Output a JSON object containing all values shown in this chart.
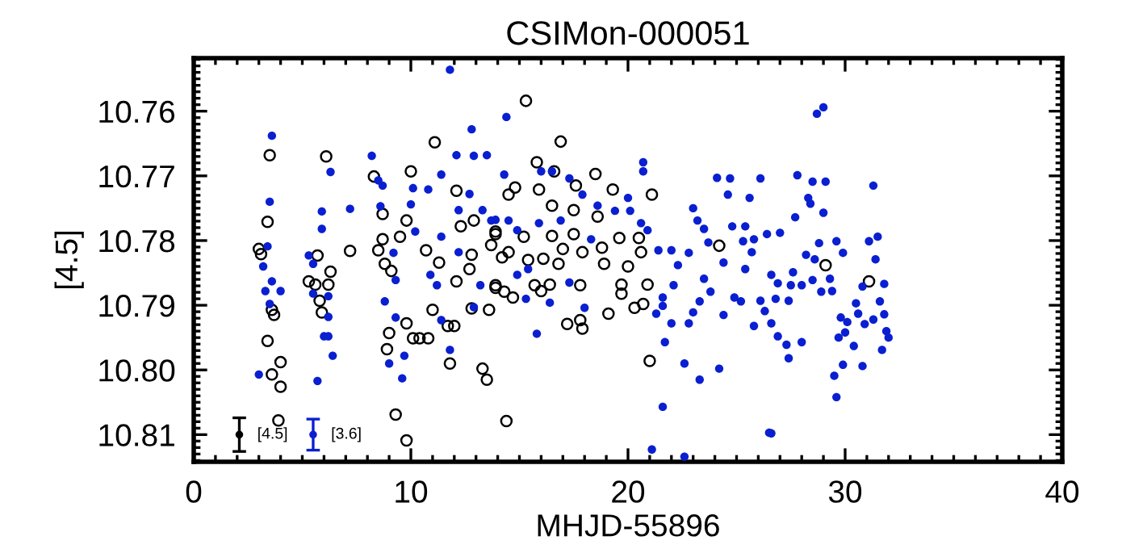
{
  "chart_data": {
    "type": "scatter",
    "title": "CSIMon-000051",
    "xlabel": "MHJD-55896",
    "ylabel": "[4.5]",
    "xlim": [
      0,
      40
    ],
    "xticks": [
      0,
      10,
      20,
      30,
      40
    ],
    "ylim": [
      10.8142,
      10.7518
    ],
    "yticks": [
      {
        "value": 10.76,
        "label": "10.76"
      },
      {
        "value": 10.77,
        "label": "10.77"
      },
      {
        "value": 10.78,
        "label": "10.78"
      },
      {
        "value": 10.79,
        "label": "10.79"
      },
      {
        "value": 10.8,
        "label": "10.80"
      },
      {
        "value": 10.81,
        "label": "10.81"
      }
    ],
    "grid": false,
    "legend": false,
    "series": [
      {
        "color": "#000000",
        "marker": "circle",
        "x": [
          3.5,
          3.4,
          3.0,
          3.1,
          3.6,
          3.7,
          3.4,
          4.0,
          3.6,
          4.0,
          3.9,
          6.1,
          5.7,
          5.3,
          5.6,
          6.3,
          6.2,
          5.8,
          5.9,
          7.2,
          8.3,
          8.7,
          8.7,
          8.5,
          8.8,
          9.1,
          9.8,
          10.0,
          9.0,
          8.9,
          9.5,
          9.8,
          10.1,
          10.4,
          10.8,
          11.0,
          10.7,
          11.3,
          11.7,
          12.0,
          11.8,
          11.1,
          12.1,
          12.3,
          12.9,
          12.7,
          12.8,
          12.1,
          12.8,
          13.3,
          13.5,
          9.3,
          9.8,
          13.9,
          13.9,
          13.6,
          15.3,
          16.9,
          15.8,
          16.6,
          14.8,
          15.9,
          17.6,
          18.5,
          19.3,
          21.1,
          14.5,
          16.5,
          17.5,
          18.6,
          13.9,
          15.2,
          16.5,
          17.5,
          19.6,
          20.5,
          13.7,
          14.5,
          15.4,
          17.0,
          17.9,
          18.8,
          20.0,
          20.6,
          14.2,
          16.1,
          16.8,
          18.9,
          13.9,
          14.3,
          15.7,
          16.0,
          16.4,
          14.7,
          17.8,
          19.7,
          19.7,
          20.9,
          20.3,
          20.7,
          19.1,
          17.2,
          17.8,
          17.9,
          21.0,
          14.4,
          24.2,
          29.1,
          31.1
        ],
        "values": [
          10.7668,
          10.7771,
          10.7813,
          10.7821,
          10.7907,
          10.7915,
          10.7955,
          10.7988,
          10.8007,
          10.8026,
          10.8078,
          10.767,
          10.7823,
          10.7863,
          10.7868,
          10.7848,
          10.7868,
          10.7893,
          10.7911,
          10.7816,
          10.7701,
          10.7759,
          10.7798,
          10.7815,
          10.7836,
          10.7847,
          10.7769,
          10.7693,
          10.7943,
          10.7968,
          10.7794,
          10.7928,
          10.7951,
          10.7951,
          10.7951,
          10.7907,
          10.7815,
          10.7834,
          10.7932,
          10.7932,
          10.799,
          10.7648,
          10.7723,
          10.7778,
          10.7769,
          10.7844,
          10.7822,
          10.7863,
          10.7905,
          10.7998,
          10.8015,
          10.8069,
          10.8109,
          10.7786,
          10.7873,
          10.7907,
          10.7584,
          10.7647,
          10.7679,
          10.7693,
          10.7718,
          10.7721,
          10.7715,
          10.7697,
          10.7721,
          10.7729,
          10.7729,
          10.7746,
          10.7753,
          10.7763,
          10.779,
          10.7794,
          10.7793,
          10.779,
          10.7796,
          10.7796,
          10.7807,
          10.7818,
          10.783,
          10.7813,
          10.7818,
          10.7811,
          10.784,
          10.7818,
          10.7826,
          10.7828,
          10.7836,
          10.7836,
          10.7869,
          10.7879,
          10.7869,
          10.7878,
          10.7868,
          10.7888,
          10.7869,
          10.7868,
          10.7882,
          10.7868,
          10.7904,
          10.7898,
          10.7913,
          10.7929,
          10.7923,
          10.7936,
          10.7986,
          10.8079,
          10.7808,
          10.7838,
          10.7863
        ]
      },
      {
        "color": "#0a1fd0",
        "marker": "circle",
        "x": [
          3.6,
          3.5,
          3.4,
          3.2,
          3.6,
          3.3,
          4.0,
          3.5,
          3.0,
          6.3,
          5.9,
          5.9,
          5.3,
          5.5,
          5.5,
          6.2,
          6.2,
          6.0,
          6.2,
          6.4,
          5.7,
          7.2,
          8.2,
          8.5,
          8.7,
          8.6,
          9.2,
          9.3,
          8.8,
          9.3,
          9.0,
          9.6,
          9.7,
          10.1,
          10.2,
          10.8,
          10.0,
          10.9,
          11.4,
          11.2,
          11.8,
          12.1,
          12.8,
          12.9,
          13.5,
          11.4,
          12.7,
          12.2,
          13.2,
          12.9,
          12.2,
          13.3,
          13.7,
          11.8,
          11.4,
          14.4,
          20.7,
          20.7,
          14.3,
          16.0,
          16.5,
          17.3,
          17.9,
          20.0,
          18.6,
          19.4,
          20.1,
          13.9,
          14.5,
          15.9,
          16.9,
          20.6,
          20.9,
          14.9,
          18.3,
          21.4,
          22.0,
          22.8,
          24.1,
          24.7,
          26.1,
          24.6,
          25.6,
          23.0,
          23.2,
          23.5,
          24.8,
          25.4,
          26.4,
          23.7,
          25.3,
          25.8,
          25.7,
          22.3,
          24.4,
          23.5,
          25.4,
          26.6,
          22.1,
          23.8,
          24.9,
          15.4,
          14.9,
          17.3,
          15.3,
          16.4,
          18.0,
          21.6,
          21.6,
          21.3,
          23.3,
          23.0,
          22.8,
          22.0,
          24.4,
          25.2,
          26.1,
          25.8,
          26.6,
          26.3,
          15.8,
          21.7,
          22.6,
          23.3,
          24.2,
          21.6,
          26.6,
          21.1,
          22.6,
          29.0,
          28.7,
          27.8,
          28.5,
          29.1,
          31.3,
          28.3,
          28.4,
          29.0,
          27.7,
          27.0,
          28.8,
          29.6,
          31.1,
          31.5,
          29.9,
          28.2,
          28.6,
          31.4,
          27.6,
          28.5,
          29.3,
          26.9,
          27.5,
          28.0,
          31.8,
          30.8,
          28.9,
          29.4,
          26.8,
          27.4,
          30.5,
          31.6,
          30.6,
          31.8,
          29.8,
          30.1,
          31.3,
          30.9,
          26.9,
          31.9,
          30.0,
          29.7,
          28.0,
          27.3,
          32.0,
          30.4,
          31.7,
          27.4,
          29.9,
          30.8,
          29.5,
          29.6,
          26.5
        ],
        "values": [
          10.7638,
          10.774,
          10.7809,
          10.784,
          10.7863,
          10.7878,
          10.7878,
          10.7898,
          10.8007,
          10.7694,
          10.7755,
          10.7782,
          10.7823,
          10.7836,
          10.7882,
          10.7886,
          10.7918,
          10.7948,
          10.7948,
          10.7978,
          10.8017,
          10.7751,
          10.7669,
          10.7707,
          10.7715,
          10.7747,
          10.7819,
          10.7861,
          10.7894,
          10.7919,
          10.799,
          10.8013,
          10.7978,
          10.7719,
          10.7786,
          10.7721,
          10.7744,
          10.7853,
          10.7794,
          10.7869,
          10.7536,
          10.7668,
          10.7628,
          10.7669,
          10.7668,
          10.7698,
          10.7728,
          10.7818,
          10.7869,
          10.7903,
          10.7753,
          10.7753,
          10.7769,
          10.7969,
          10.7923,
          10.7609,
          10.7679,
          10.7693,
          10.7698,
          10.7693,
          10.7693,
          10.7704,
          10.7729,
          10.7734,
          10.7746,
          10.7754,
          10.7754,
          10.7768,
          10.7769,
          10.7773,
          10.7769,
          10.7773,
          10.7784,
          10.7784,
          10.7798,
          10.7815,
          10.7815,
          10.7819,
          10.7703,
          10.7704,
          10.7704,
          10.7729,
          10.7734,
          10.775,
          10.7769,
          10.7782,
          10.7778,
          10.7778,
          10.779,
          10.7803,
          10.7801,
          10.7798,
          10.7818,
          10.7838,
          10.7834,
          10.7859,
          10.7844,
          10.7853,
          10.7869,
          10.7879,
          10.7888,
          10.7844,
          10.7853,
          10.7865,
          10.789,
          10.7896,
          10.7904,
          10.7888,
          10.7901,
          10.7913,
          10.7894,
          10.7911,
          10.7928,
          10.7928,
          10.7915,
          10.7894,
          10.7893,
          10.7932,
          10.7928,
          10.7909,
          10.7944,
          10.7957,
          10.799,
          10.8015,
          10.7998,
          10.8057,
          10.8098,
          10.8123,
          10.8134,
          10.7594,
          10.7604,
          10.7699,
          10.7709,
          10.7709,
          10.7715,
          10.7734,
          10.7743,
          10.7757,
          10.7764,
          10.7788,
          10.7804,
          10.7801,
          10.7801,
          10.7794,
          10.7819,
          10.7822,
          10.7829,
          10.7829,
          10.7849,
          10.7861,
          10.7859,
          10.7866,
          10.7869,
          10.7869,
          10.7867,
          10.7871,
          10.7879,
          10.7878,
          10.789,
          10.7893,
          10.7897,
          10.7894,
          10.7913,
          10.7914,
          10.7919,
          10.7926,
          10.7922,
          10.7929,
          10.7948,
          10.794,
          10.7942,
          10.795,
          10.7957,
          10.7961,
          10.795,
          10.7963,
          10.7969,
          10.7982,
          10.7992,
          10.7994,
          10.8009,
          10.8042,
          10.8097
        ]
      },
      {
        "name": "[4.5]",
        "color": "#000000",
        "marker": "circle",
        "x": [
          2.1
        ],
        "values": [
          10.81
        ],
        "errors": [
          0.0026
        ]
      },
      {
        "name": "[3.6]",
        "color": "#0a1fd0",
        "marker": "circle",
        "x": [
          5.5
        ],
        "values": [
          10.81
        ],
        "errors": [
          0.0024
        ]
      }
    ]
  }
}
